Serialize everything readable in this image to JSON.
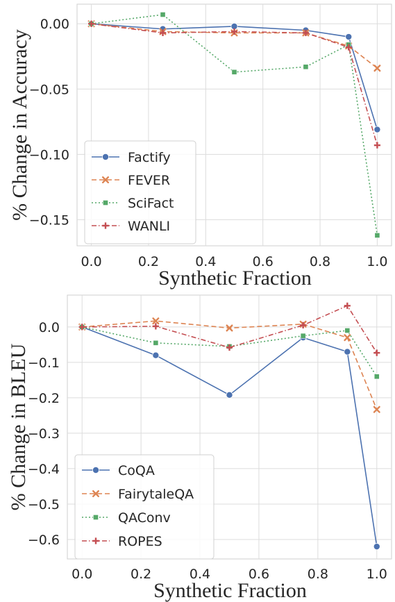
{
  "chart_data": [
    {
      "type": "line",
      "xlabel": "Synthetic Fraction",
      "ylabel": "% Change in Accuracy",
      "xlim": [
        -0.05,
        1.05
      ],
      "ylim": [
        -0.17,
        0.015
      ],
      "xticks": [
        0.0,
        0.2,
        0.4,
        0.6,
        0.8,
        1.0
      ],
      "xtick_labels": [
        "0.0",
        "0.2",
        "0.4",
        "0.6",
        "0.8",
        "1.0"
      ],
      "yticks": [
        0.0,
        -0.05,
        -0.1,
        -0.15
      ],
      "ytick_labels": [
        "0.00",
        "−0.05",
        "−0.10",
        "−0.15"
      ],
      "grid": true,
      "legend_position": "bottom-left",
      "x": [
        0.0,
        0.25,
        0.5,
        0.75,
        0.9,
        1.0
      ],
      "series": [
        {
          "name": "Factify",
          "color": "#4c72b0",
          "marker": "circle",
          "dash": "solid",
          "values": [
            0.0,
            -0.004,
            -0.002,
            -0.005,
            -0.01,
            -0.081
          ]
        },
        {
          "name": "FEVER",
          "color": "#dd8452",
          "marker": "x",
          "dash": "dashed",
          "values": [
            0.0,
            -0.006,
            -0.007,
            -0.007,
            -0.017,
            -0.034
          ]
        },
        {
          "name": "SciFact",
          "color": "#55a868",
          "marker": "square",
          "dash": "dotted",
          "values": [
            0.0,
            0.007,
            -0.037,
            -0.033,
            -0.016,
            -0.162
          ]
        },
        {
          "name": "WANLI",
          "color": "#c44e52",
          "marker": "plus",
          "dash": "dashdot",
          "values": [
            0.0,
            -0.007,
            -0.006,
            -0.007,
            -0.018,
            -0.093
          ]
        }
      ]
    },
    {
      "type": "line",
      "xlabel": "Synthetic Fraction",
      "ylabel": "% Change in BLEU",
      "xlim": [
        -0.05,
        1.05
      ],
      "ylim": [
        -0.655,
        0.09
      ],
      "xticks": [
        0.0,
        0.2,
        0.4,
        0.6,
        0.8,
        1.0
      ],
      "xtick_labels": [
        "0.0",
        "0.2",
        "0.4",
        "0.6",
        "0.8",
        "1.0"
      ],
      "yticks": [
        0.0,
        -0.1,
        -0.2,
        -0.3,
        -0.4,
        -0.5,
        -0.6
      ],
      "ytick_labels": [
        "0.0",
        "−0.1",
        "−0.2",
        "−0.3",
        "−0.4",
        "−0.5",
        "−0.6"
      ],
      "grid": true,
      "legend_position": "bottom-left",
      "x": [
        0.0,
        0.25,
        0.5,
        0.75,
        0.9,
        1.0
      ],
      "series": [
        {
          "name": "CoQA",
          "color": "#4c72b0",
          "marker": "circle",
          "dash": "solid",
          "values": [
            0.0,
            -0.08,
            -0.192,
            -0.03,
            -0.07,
            -0.62
          ]
        },
        {
          "name": "FairytaleQA",
          "color": "#dd8452",
          "marker": "x",
          "dash": "dashed",
          "values": [
            0.0,
            0.017,
            -0.003,
            0.008,
            -0.03,
            -0.233
          ]
        },
        {
          "name": "QAConv",
          "color": "#55a868",
          "marker": "square",
          "dash": "dotted",
          "values": [
            0.0,
            -0.045,
            -0.055,
            -0.025,
            -0.01,
            -0.14
          ]
        },
        {
          "name": "ROPES",
          "color": "#c44e52",
          "marker": "plus",
          "dash": "dashdot",
          "values": [
            0.0,
            0.002,
            -0.058,
            0.005,
            0.06,
            -0.073
          ]
        }
      ]
    }
  ]
}
